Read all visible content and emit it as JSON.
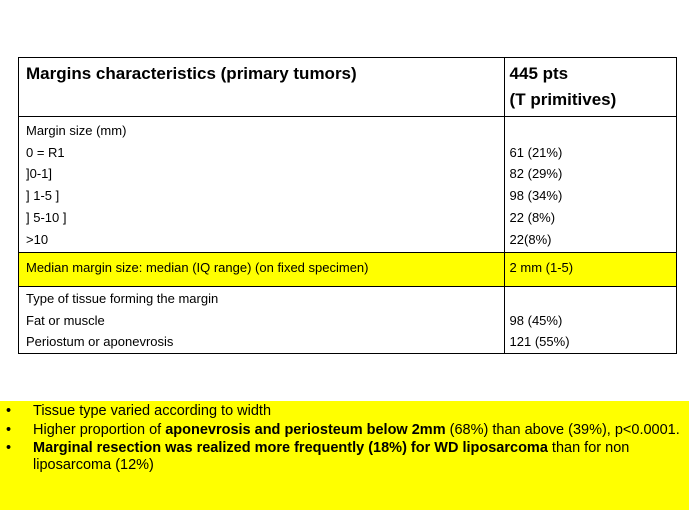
{
  "table": {
    "header": {
      "col1": "Margins characteristics (primary tumors)",
      "col2_line1": "445 pts",
      "col2_line2": "(T primitives)"
    },
    "margin_size": {
      "title": "Margin size (mm)",
      "rows": [
        {
          "label": "0 = R1",
          "value": "61 (21%)"
        },
        {
          "label": "]0-1]",
          "value": "82 (29%)"
        },
        {
          "label": "] 1-5 ]",
          "value": "98 (34%)"
        },
        {
          "label": "] 5-10 ]",
          "value": "22 (8%)"
        },
        {
          "label": ">10",
          "value": "22(8%)"
        }
      ]
    },
    "median": {
      "label": "Median margin size: median (IQ range) (on fixed specimen)",
      "value": "2 mm (1-5)"
    },
    "tissue": {
      "title": "Type of tissue forming the margin",
      "rows": [
        {
          "label": "Fat or muscle",
          "value": "98 (45%)"
        },
        {
          "label": "Periostum or aponevrosis",
          "value": "121 (55%)"
        }
      ]
    }
  },
  "bullets": {
    "marker": "•",
    "b1": "Tissue type varied according to width",
    "b2_pre": "Higher proportion of ",
    "b2_bold": "aponevrosis and periosteum below 2mm",
    "b2_post": " (68%) than above (39%), p<0.0001.",
    "b3_bold": "Marginal resection was realized more frequently (18%) for WD liposarcoma",
    "b3_post": " than for non liposarcoma (12%)"
  },
  "colors": {
    "highlight": "#ffff00",
    "border": "#000000"
  }
}
